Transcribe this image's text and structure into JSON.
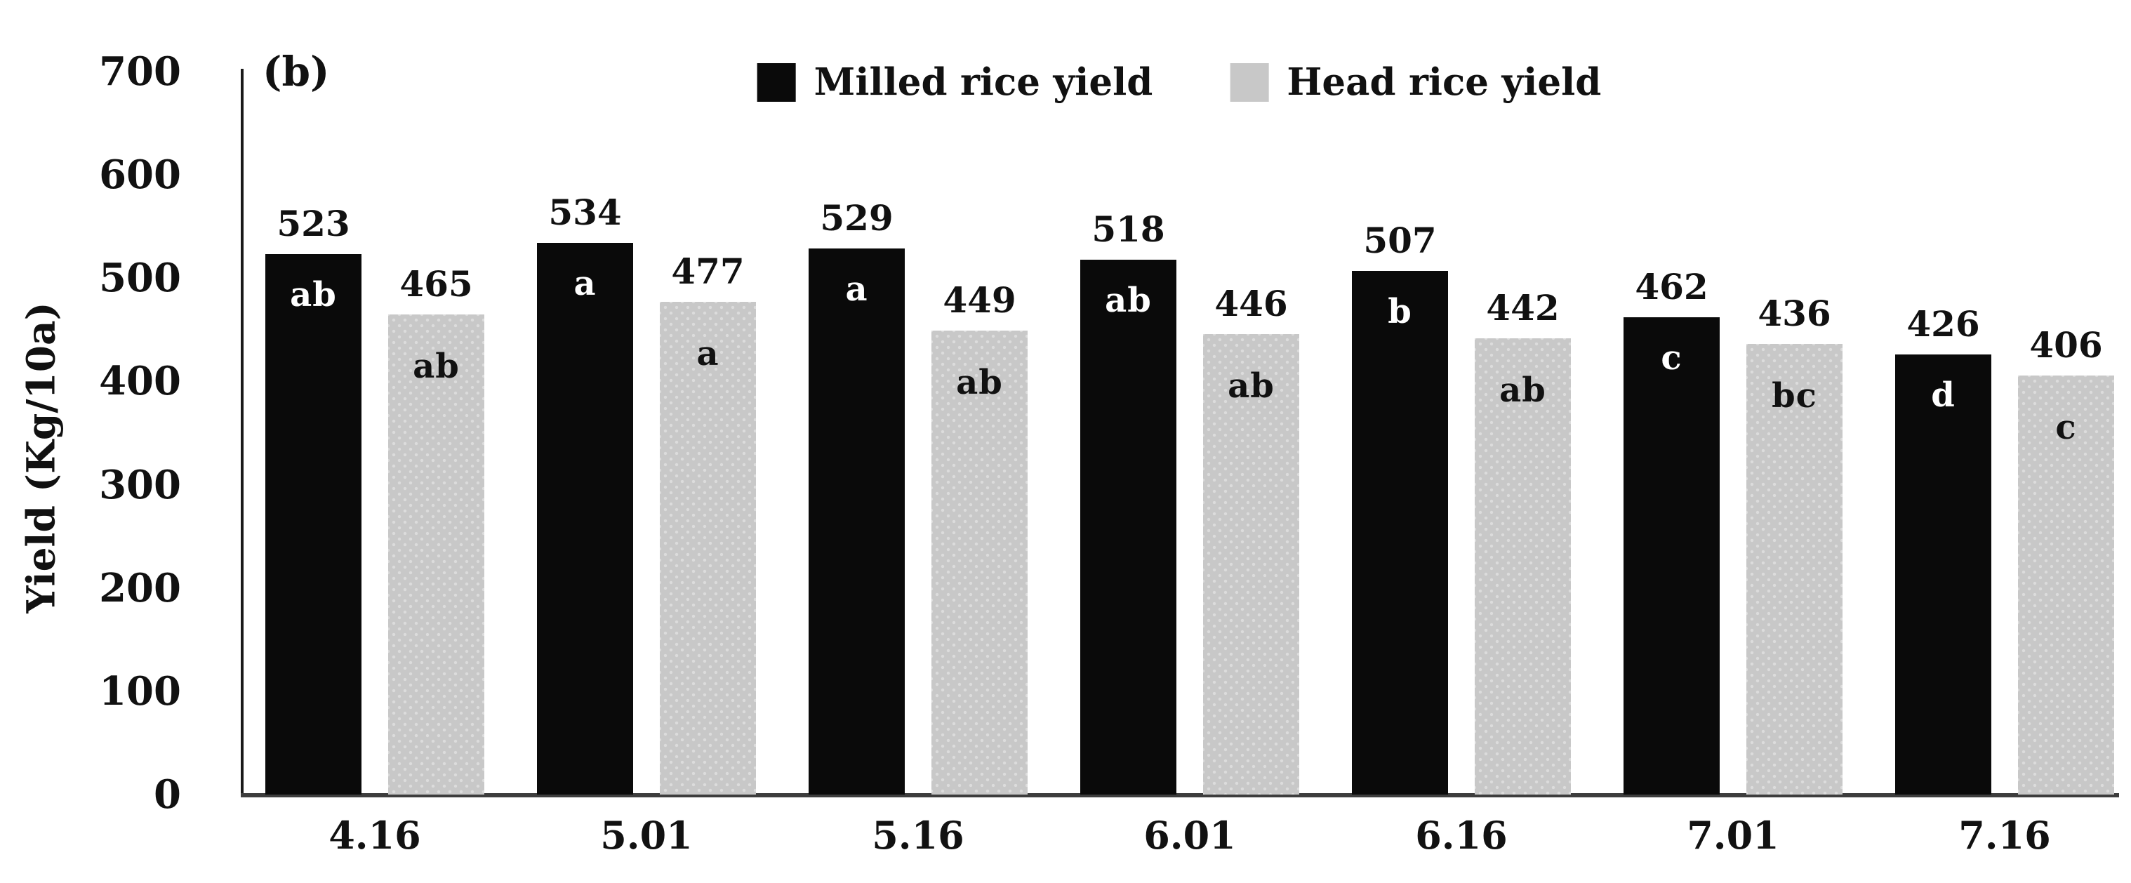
{
  "chart_data": {
    "type": "bar",
    "panel_label": "(b)",
    "ylabel": "Yield (Kg/10a)",
    "ylim": [
      0,
      700
    ],
    "yticks": [
      0,
      100,
      200,
      300,
      400,
      500,
      600,
      700
    ],
    "grid": false,
    "legend_position": "top-center",
    "axis_color": "#3d3d3d",
    "categories": [
      "4.16",
      "5.01",
      "5.16",
      "6.01",
      "6.16",
      "7.01",
      "7.16"
    ],
    "series": [
      {
        "name": "Milled rice yield",
        "color": "#0a0a0a",
        "letter_color": "#ffffff",
        "values": [
          523,
          534,
          529,
          518,
          507,
          462,
          426
        ],
        "letters": [
          "ab",
          "a",
          "a",
          "ab",
          "b",
          "c",
          "d"
        ]
      },
      {
        "name": "Head rice yield",
        "color": "#c8c8c8",
        "letter_color": "#111111",
        "values": [
          465,
          477,
          449,
          446,
          442,
          436,
          406
        ],
        "letters": [
          "ab",
          "a",
          "ab",
          "ab",
          "ab",
          "bc",
          "c"
        ]
      }
    ]
  }
}
